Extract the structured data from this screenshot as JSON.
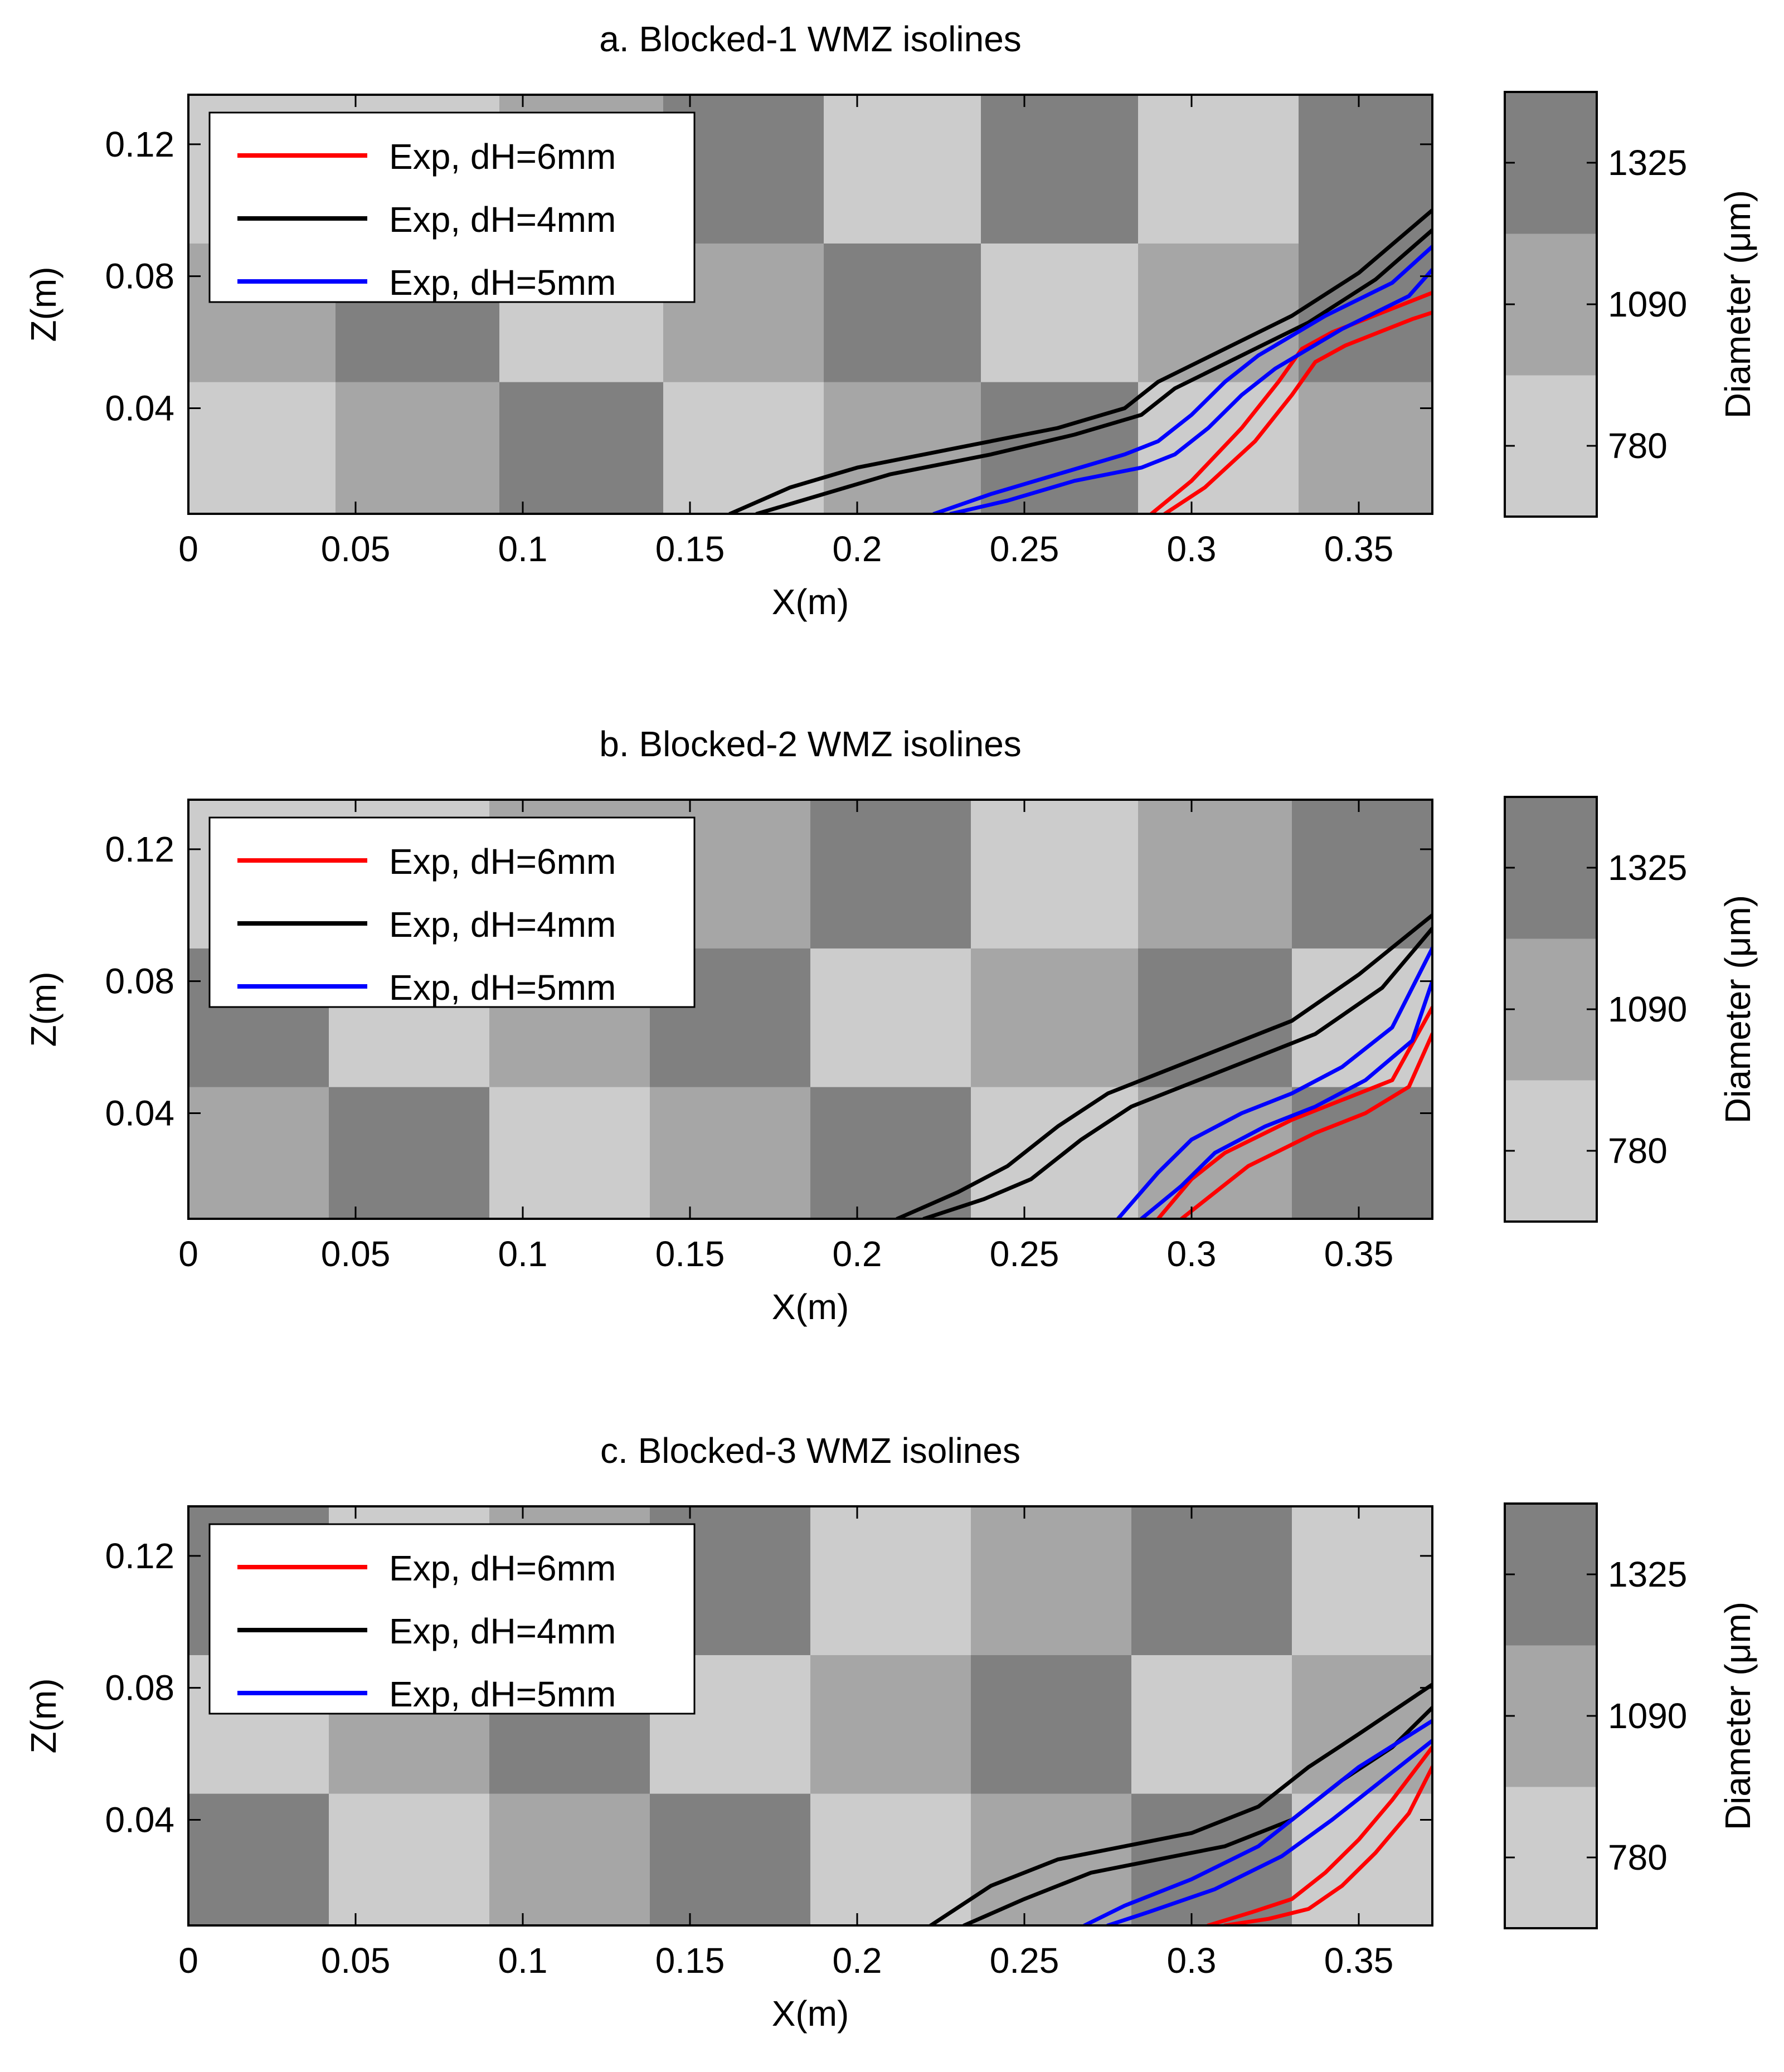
{
  "figure": {
    "panels": [
      {
        "title": "a. Blocked-1 WMZ isolines",
        "xlabel": "X(m)",
        "ylabel": "Z(m)",
        "colorbar_label": "Diameter (μm)"
      },
      {
        "title": "b. Blocked-2 WMZ isolines",
        "xlabel": "X(m)",
        "ylabel": "Z(m)",
        "colorbar_label": "Diameter (μm)"
      },
      {
        "title": "c. Blocked-3 WMZ isolines",
        "xlabel": "X(m)",
        "ylabel": "Z(m)",
        "colorbar_label": "Diameter (μm)"
      }
    ]
  },
  "chart_data": [
    {
      "type": "heatmap",
      "title": "a. Blocked-1 WMZ isolines",
      "xlabel": "X(m)",
      "ylabel": "Z(m)",
      "xlim": [
        0,
        0.372
      ],
      "ylim": [
        0.008,
        0.135
      ],
      "xticks": [
        "0",
        "0.05",
        "0.1",
        "0.15",
        "0.2",
        "0.25",
        "0.3",
        "0.35"
      ],
      "xtick_values": [
        0,
        0.05,
        0.1,
        0.15,
        0.2,
        0.25,
        0.3,
        0.35
      ],
      "yticks": [
        "0.04",
        "0.08",
        "0.12"
      ],
      "ytick_values": [
        0.04,
        0.08,
        0.12
      ],
      "colorbar": {
        "label": "Diameter (μm)",
        "ticks": [
          "780",
          "1090",
          "1325"
        ],
        "colors": [
          "#cccccc",
          "#a6a6a6",
          "#808080"
        ]
      },
      "grid": {
        "x_edges": [
          0,
          0.044,
          0.093,
          0.142,
          0.19,
          0.237,
          0.284,
          0.332,
          0.372
        ],
        "z_edges": [
          0.008,
          0.048,
          0.09,
          0.135
        ],
        "classes": [
          [
            0,
            1,
            2,
            0,
            1,
            2,
            0,
            1
          ],
          [
            1,
            2,
            0,
            1,
            2,
            0,
            1,
            2
          ],
          [
            0,
            0,
            1,
            2,
            0,
            2,
            0,
            2
          ]
        ]
      },
      "legend": [
        "Exp, dH=6mm",
        "Exp, dH=4mm",
        "Exp, dH=5mm"
      ],
      "series": [
        {
          "name": "Exp, dH=6mm",
          "color": "#ff0000",
          "lines": [
            {
              "x": [
                0.288,
                0.3,
                0.315,
                0.326,
                0.333,
                0.342,
                0.352,
                0.362,
                0.372
              ],
              "z": [
                0.008,
                0.018,
                0.034,
                0.048,
                0.058,
                0.063,
                0.067,
                0.071,
                0.075
              ]
            },
            {
              "x": [
                0.292,
                0.304,
                0.319,
                0.33,
                0.337,
                0.346,
                0.356,
                0.366,
                0.372
              ],
              "z": [
                0.008,
                0.016,
                0.03,
                0.044,
                0.054,
                0.059,
                0.063,
                0.067,
                0.069
              ]
            }
          ]
        },
        {
          "name": "Exp, dH=4mm",
          "color": "#000000",
          "lines": [
            {
              "x": [
                0.162,
                0.18,
                0.2,
                0.23,
                0.26,
                0.28,
                0.29,
                0.31,
                0.33,
                0.35,
                0.372
              ],
              "z": [
                0.008,
                0.016,
                0.022,
                0.028,
                0.034,
                0.04,
                0.048,
                0.058,
                0.068,
                0.081,
                0.1
              ]
            },
            {
              "x": [
                0.17,
                0.19,
                0.21,
                0.24,
                0.265,
                0.285,
                0.295,
                0.315,
                0.335,
                0.355,
                0.372
              ],
              "z": [
                0.008,
                0.014,
                0.02,
                0.026,
                0.032,
                0.038,
                0.046,
                0.056,
                0.066,
                0.079,
                0.094
              ]
            }
          ]
        },
        {
          "name": "Exp, dH=5mm",
          "color": "#0000ff",
          "lines": [
            {
              "x": [
                0.223,
                0.24,
                0.26,
                0.28,
                0.29,
                0.3,
                0.31,
                0.32,
                0.33,
                0.34,
                0.36,
                0.372
              ],
              "z": [
                0.008,
                0.014,
                0.02,
                0.026,
                0.03,
                0.038,
                0.048,
                0.056,
                0.062,
                0.068,
                0.078,
                0.089
              ]
            },
            {
              "x": [
                0.228,
                0.245,
                0.265,
                0.285,
                0.295,
                0.305,
                0.315,
                0.325,
                0.335,
                0.345,
                0.365,
                0.372
              ],
              "z": [
                0.008,
                0.012,
                0.018,
                0.022,
                0.026,
                0.034,
                0.044,
                0.052,
                0.058,
                0.064,
                0.074,
                0.082
              ]
            }
          ]
        }
      ]
    },
    {
      "type": "heatmap",
      "title": "b. Blocked-2 WMZ isolines",
      "xlabel": "X(m)",
      "ylabel": "Z(m)",
      "xlim": [
        0,
        0.372
      ],
      "ylim": [
        0.008,
        0.135
      ],
      "xticks": [
        "0",
        "0.05",
        "0.1",
        "0.15",
        "0.2",
        "0.25",
        "0.3",
        "0.35"
      ],
      "xtick_values": [
        0,
        0.05,
        0.1,
        0.15,
        0.2,
        0.25,
        0.3,
        0.35
      ],
      "yticks": [
        "0.04",
        "0.08",
        "0.12"
      ],
      "ytick_values": [
        0.04,
        0.08,
        0.12
      ],
      "colorbar": {
        "label": "Diameter (μm)",
        "ticks": [
          "780",
          "1090",
          "1325"
        ],
        "colors": [
          "#cccccc",
          "#a6a6a6",
          "#808080"
        ]
      },
      "grid": {
        "x_edges": [
          0,
          0.042,
          0.09,
          0.138,
          0.186,
          0.234,
          0.284,
          0.33,
          0.372
        ],
        "z_edges": [
          0.008,
          0.048,
          0.09,
          0.135
        ],
        "classes": [
          [
            1,
            2,
            0,
            1,
            2,
            0,
            1,
            2
          ],
          [
            2,
            0,
            1,
            2,
            0,
            1,
            2,
            0
          ],
          [
            0,
            0,
            1,
            1,
            2,
            0,
            1,
            2
          ]
        ]
      },
      "legend": [
        "Exp, dH=6mm",
        "Exp, dH=4mm",
        "Exp, dH=5mm"
      ],
      "series": [
        {
          "name": "Exp, dH=6mm",
          "color": "#ff0000",
          "lines": [
            {
              "x": [
                0.29,
                0.3,
                0.31,
                0.32,
                0.33,
                0.345,
                0.36,
                0.372
              ],
              "z": [
                0.008,
                0.02,
                0.028,
                0.033,
                0.038,
                0.044,
                0.05,
                0.072
              ]
            },
            {
              "x": [
                0.297,
                0.307,
                0.317,
                0.327,
                0.337,
                0.352,
                0.365,
                0.372
              ],
              "z": [
                0.008,
                0.016,
                0.024,
                0.029,
                0.034,
                0.04,
                0.048,
                0.064
              ]
            }
          ]
        },
        {
          "name": "Exp, dH=4mm",
          "color": "#000000",
          "lines": [
            {
              "x": [
                0.212,
                0.23,
                0.245,
                0.26,
                0.275,
                0.29,
                0.31,
                0.33,
                0.35,
                0.372
              ],
              "z": [
                0.008,
                0.016,
                0.024,
                0.036,
                0.046,
                0.052,
                0.06,
                0.068,
                0.082,
                0.1
              ]
            },
            {
              "x": [
                0.22,
                0.238,
                0.252,
                0.267,
                0.282,
                0.297,
                0.317,
                0.337,
                0.357,
                0.372
              ],
              "z": [
                0.008,
                0.014,
                0.02,
                0.032,
                0.042,
                0.048,
                0.056,
                0.064,
                0.078,
                0.096
              ]
            }
          ]
        },
        {
          "name": "Exp, dH=5mm",
          "color": "#0000ff",
          "lines": [
            {
              "x": [
                0.278,
                0.29,
                0.3,
                0.315,
                0.33,
                0.345,
                0.36,
                0.372
              ],
              "z": [
                0.008,
                0.022,
                0.032,
                0.04,
                0.046,
                0.054,
                0.066,
                0.09
              ]
            },
            {
              "x": [
                0.285,
                0.297,
                0.307,
                0.322,
                0.337,
                0.352,
                0.366,
                0.372
              ],
              "z": [
                0.008,
                0.018,
                0.028,
                0.036,
                0.042,
                0.05,
                0.062,
                0.08
              ]
            }
          ]
        }
      ]
    },
    {
      "type": "heatmap",
      "title": "c. Blocked-3 WMZ isolines",
      "xlabel": "X(m)",
      "ylabel": "Z(m)",
      "xlim": [
        0,
        0.372
      ],
      "ylim": [
        0.008,
        0.135
      ],
      "xticks": [
        "0",
        "0.05",
        "0.1",
        "0.15",
        "0.2",
        "0.25",
        "0.3",
        "0.35"
      ],
      "xtick_values": [
        0,
        0.05,
        0.1,
        0.15,
        0.2,
        0.25,
        0.3,
        0.35
      ],
      "yticks": [
        "0.04",
        "0.08",
        "0.12"
      ],
      "ytick_values": [
        0.04,
        0.08,
        0.12
      ],
      "colorbar": {
        "label": "Diameter (μm)",
        "ticks": [
          "780",
          "1090",
          "1325"
        ],
        "colors": [
          "#cccccc",
          "#a6a6a6",
          "#808080"
        ]
      },
      "grid": {
        "x_edges": [
          0,
          0.042,
          0.09,
          0.138,
          0.186,
          0.234,
          0.282,
          0.33,
          0.372
        ],
        "z_edges": [
          0.008,
          0.048,
          0.09,
          0.135
        ],
        "classes": [
          [
            2,
            0,
            1,
            2,
            0,
            1,
            2,
            0
          ],
          [
            0,
            1,
            2,
            0,
            1,
            2,
            0,
            1
          ],
          [
            2,
            0,
            1,
            2,
            0,
            1,
            2,
            0
          ]
        ]
      },
      "legend": [
        "Exp, dH=6mm",
        "Exp, dH=4mm",
        "Exp, dH=5mm"
      ],
      "series": [
        {
          "name": "Exp, dH=6mm",
          "color": "#ff0000",
          "lines": [
            {
              "x": [
                0.305,
                0.318,
                0.33,
                0.34,
                0.35,
                0.36,
                0.372
              ],
              "z": [
                0.008,
                0.012,
                0.016,
                0.024,
                0.034,
                0.046,
                0.062
              ]
            },
            {
              "x": [
                0.31,
                0.323,
                0.335,
                0.345,
                0.355,
                0.365,
                0.372
              ],
              "z": [
                0.008,
                0.01,
                0.013,
                0.02,
                0.03,
                0.042,
                0.056
              ]
            }
          ]
        },
        {
          "name": "Exp, dH=4mm",
          "color": "#000000",
          "lines": [
            {
              "x": [
                0.222,
                0.24,
                0.26,
                0.28,
                0.3,
                0.32,
                0.335,
                0.35,
                0.372
              ],
              "z": [
                0.008,
                0.02,
                0.028,
                0.032,
                0.036,
                0.044,
                0.056,
                0.066,
                0.081
              ]
            },
            {
              "x": [
                0.232,
                0.25,
                0.27,
                0.29,
                0.31,
                0.33,
                0.345,
                0.36,
                0.372
              ],
              "z": [
                0.008,
                0.016,
                0.024,
                0.028,
                0.032,
                0.04,
                0.052,
                0.062,
                0.074
              ]
            }
          ]
        },
        {
          "name": "Exp, dH=5mm",
          "color": "#0000ff",
          "lines": [
            {
              "x": [
                0.268,
                0.28,
                0.3,
                0.32,
                0.335,
                0.35,
                0.372
              ],
              "z": [
                0.008,
                0.014,
                0.022,
                0.032,
                0.044,
                0.056,
                0.07
              ]
            },
            {
              "x": [
                0.275,
                0.287,
                0.307,
                0.327,
                0.342,
                0.357,
                0.372
              ],
              "z": [
                0.008,
                0.012,
                0.019,
                0.029,
                0.04,
                0.052,
                0.064
              ]
            }
          ]
        }
      ]
    }
  ]
}
